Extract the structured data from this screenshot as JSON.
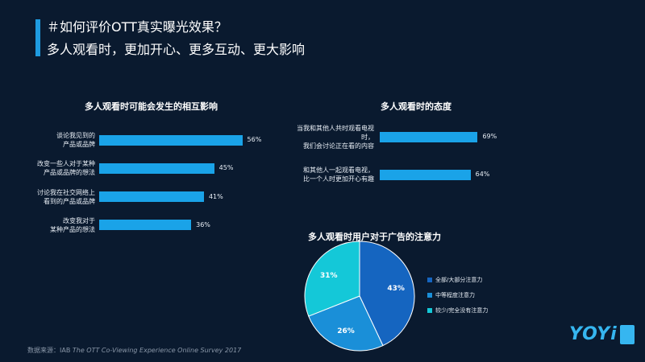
{
  "header": {
    "title": "＃如何评价OTT真实曝光效果？",
    "subtitle": "多人观看时，更加开心、更多互动、更大影响"
  },
  "colors": {
    "accent": "#1e9be0",
    "bar": "#1aa3e8",
    "background": "#0a1a2f",
    "pie": [
      "#1565c0",
      "#1a8fd8",
      "#14c8d8"
    ]
  },
  "chart_data": [
    {
      "type": "bar",
      "orientation": "horizontal",
      "title": "多人观看时可能会发生的相互影响",
      "categories": [
        [
          "谈论我见到的",
          "产品或品牌"
        ],
        [
          "改变一些人对于某种",
          "产品或品牌的想法"
        ],
        [
          "讨论我在社交网络上",
          "看到的产品或品牌"
        ],
        [
          "改变我对于",
          "某种产品的想法"
        ]
      ],
      "values": [
        56,
        45,
        41,
        36
      ],
      "value_labels": [
        "56%",
        "45%",
        "41%",
        "36%"
      ],
      "xlim": [
        0,
        100
      ]
    },
    {
      "type": "bar",
      "orientation": "horizontal",
      "title": "多人观看时的态度",
      "categories": [
        [
          "当我和其他人共时观看电视",
          "时，",
          "我们会讨论正在看的内容"
        ],
        [
          "和其他人一起观看电视，",
          "比一个人时更加开心有趣"
        ]
      ],
      "values": [
        69,
        64
      ],
      "value_labels": [
        "69%",
        "64%"
      ],
      "xlim": [
        0,
        100
      ]
    },
    {
      "type": "pie",
      "title": "多人观看时用户对于广告的注意力",
      "categories": [
        "全部/大部分注意力",
        "中等程度注意力",
        "较少/完全没有注意力"
      ],
      "values": [
        43,
        26,
        31
      ],
      "value_labels": [
        "43%",
        "26%",
        "31%"
      ],
      "legend": "right"
    }
  ],
  "source": {
    "prefix": "数据来源：IAB",
    "title": "The OTT Co-Viewing Experience Online Survey 2017"
  },
  "logo": {
    "text": "YOYi",
    "badge": "悠易"
  }
}
